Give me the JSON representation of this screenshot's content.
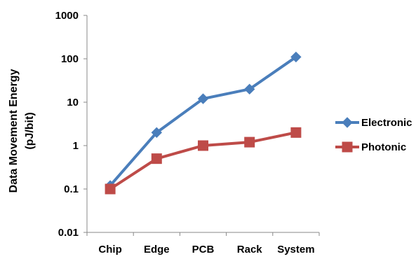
{
  "chart_data": {
    "type": "line",
    "categories": [
      "Chip",
      "Edge",
      "PCB",
      "Rack",
      "System"
    ],
    "series": [
      {
        "name": "Electronic",
        "values": [
          0.12,
          2,
          12,
          20,
          110
        ],
        "color": "#4a7ebb",
        "marker": "diamond"
      },
      {
        "name": "Photonic",
        "values": [
          0.1,
          0.5,
          1,
          1.2,
          2
        ],
        "color": "#be4b48",
        "marker": "square"
      }
    ],
    "title": "",
    "xlabel": "",
    "ylabel": "Data Movement Energy (pJ/bit)",
    "ylabel_lines": [
      "Data Movement Energy",
      "(pJ/bit)"
    ],
    "yscale": "log",
    "ylim": [
      0.01,
      1000
    ],
    "yticks": [
      "0.01",
      "0.1",
      "1",
      "10",
      "100",
      "1000"
    ],
    "grid": false,
    "legend_position": "right"
  }
}
